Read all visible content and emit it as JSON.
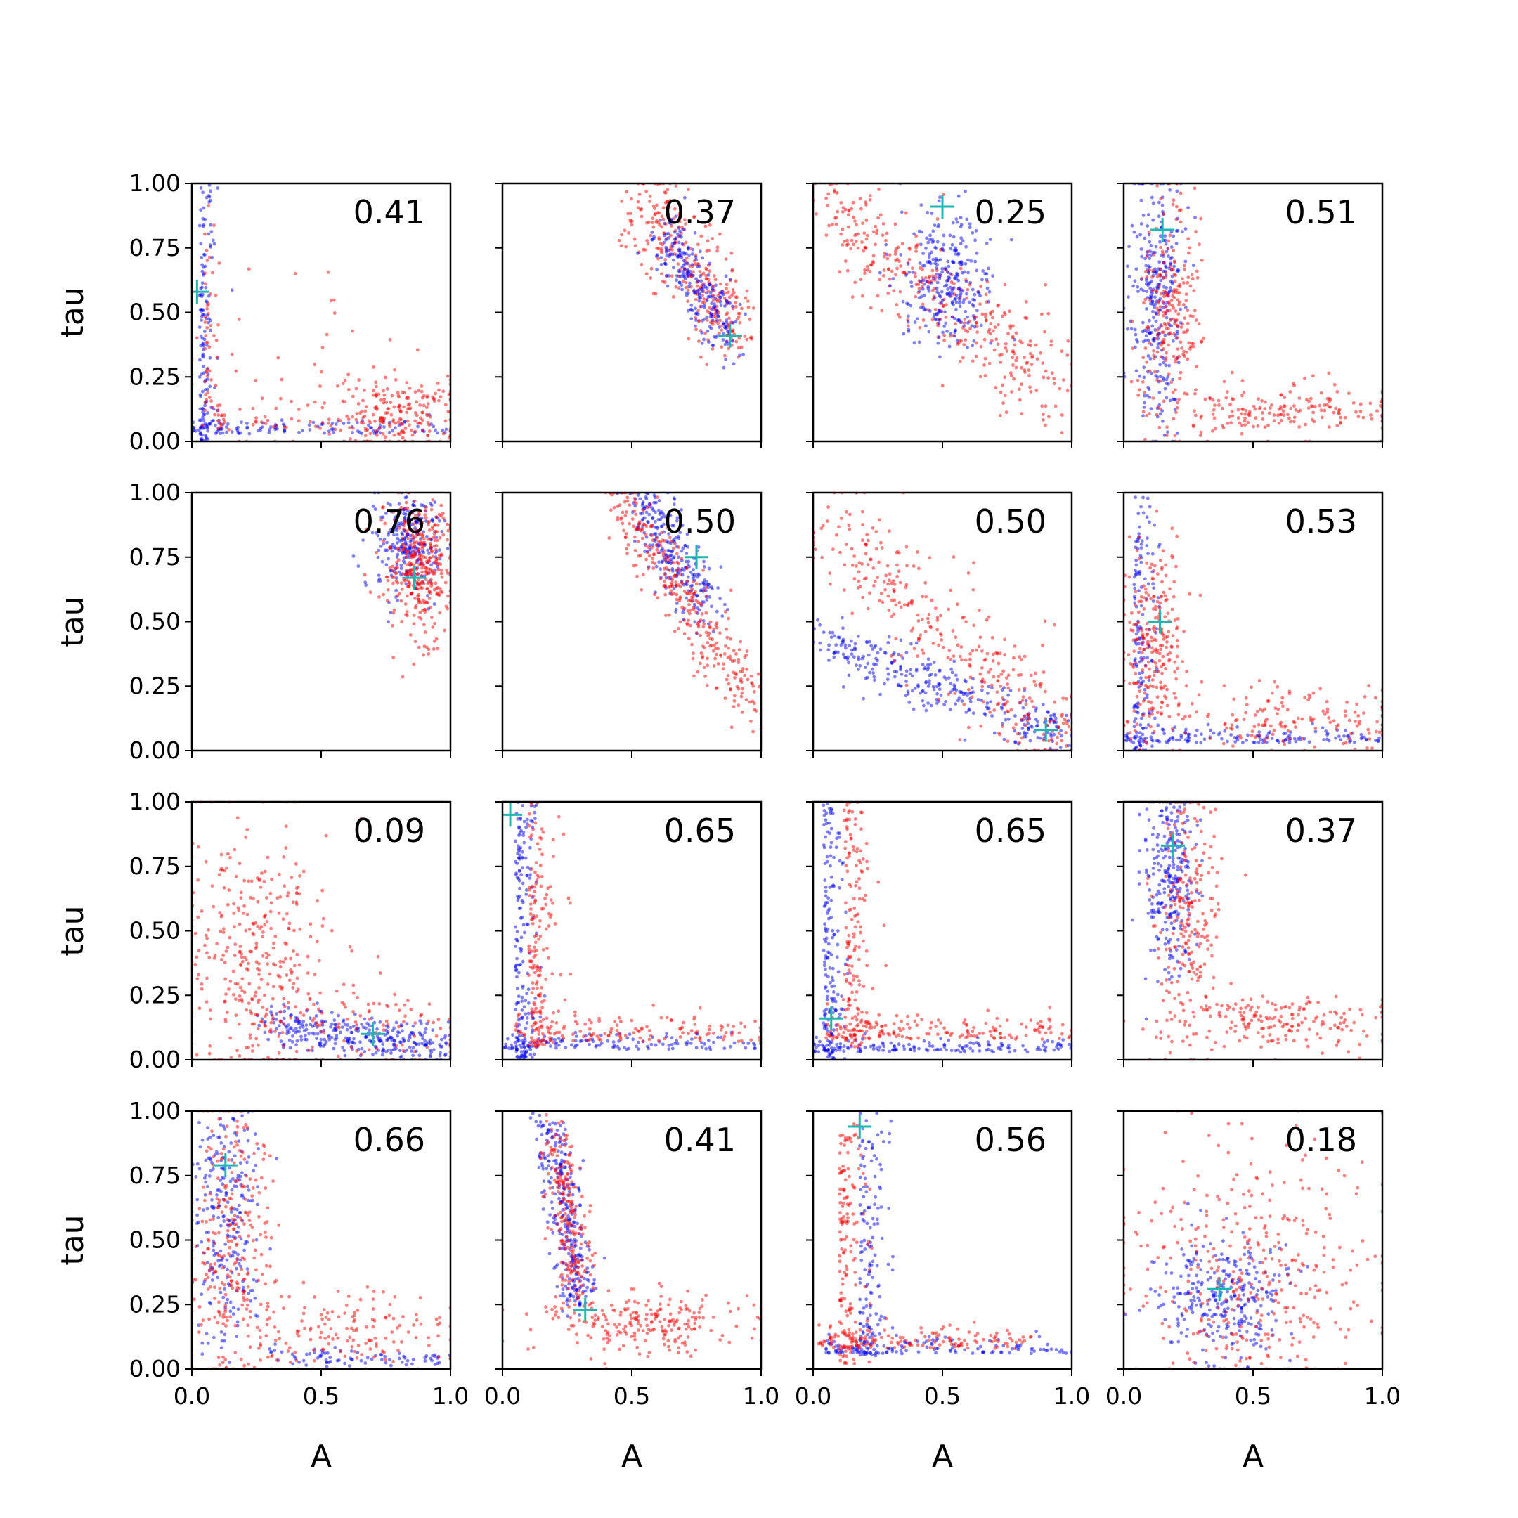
{
  "chart_data": {
    "type": "scatter",
    "layout": "4x4 grid of scatter panels, shared axes",
    "xlabel": "A",
    "ylabel": "tau",
    "xlim": [
      0,
      1
    ],
    "ylim": [
      0,
      1
    ],
    "xticks": [
      "0.0",
      "0.5",
      "1.0"
    ],
    "yticks": [
      "0.00",
      "0.25",
      "0.50",
      "0.75",
      "1.00"
    ],
    "grid": false,
    "series_colors": {
      "blue": "#0000ff",
      "red": "#ff0000",
      "marker": "#1fb5b0"
    },
    "marker_style": "cross",
    "panels": [
      {
        "stat": "0.41",
        "marker": [
          0.02,
          0.58
        ],
        "clusters": [
          {
            "color": "blue",
            "n": 260,
            "shape": "L",
            "corner": [
              0.03,
              0.03
            ],
            "h": [
              0.0,
              1.0
            ],
            "v": [
              0.0,
              1.0
            ],
            "sx": 0.03,
            "sy": 0.03
          },
          {
            "color": "red",
            "n": 90,
            "shape": "L",
            "corner": [
              0.05,
              0.05
            ],
            "h": [
              0.1,
              1.0
            ],
            "v": [
              0.1,
              1.0
            ],
            "sx": 0.03,
            "sy": 0.05
          },
          {
            "color": "red",
            "n": 200,
            "shape": "blob",
            "cx": 0.8,
            "cy": 0.1,
            "sx": 0.13,
            "sy": 0.07
          },
          {
            "color": "red",
            "n": 50,
            "shape": "blob",
            "cx": 0.35,
            "cy": 0.25,
            "sx": 0.25,
            "sy": 0.2
          }
        ]
      },
      {
        "stat": "0.37",
        "marker": [
          0.88,
          0.41
        ],
        "clusters": [
          {
            "color": "red",
            "n": 330,
            "shape": "band",
            "p0": [
              0.55,
              0.95
            ],
            "p1": [
              0.92,
              0.38
            ],
            "w": 0.08
          },
          {
            "color": "blue",
            "n": 240,
            "shape": "band",
            "p0": [
              0.62,
              0.82
            ],
            "p1": [
              0.88,
              0.4
            ],
            "w": 0.06
          }
        ]
      },
      {
        "stat": "0.25",
        "marker": [
          0.5,
          0.91
        ],
        "clusters": [
          {
            "color": "red",
            "n": 380,
            "shape": "band",
            "p0": [
              0.05,
              0.9
            ],
            "p1": [
              0.95,
              0.2
            ],
            "w": 0.09
          },
          {
            "color": "blue",
            "n": 280,
            "shape": "blob",
            "cx": 0.52,
            "cy": 0.63,
            "sx": 0.09,
            "sy": 0.13
          }
        ]
      },
      {
        "stat": "0.51",
        "marker": [
          0.15,
          0.82
        ],
        "clusters": [
          {
            "color": "blue",
            "n": 300,
            "shape": "blob",
            "cx": 0.13,
            "cy": 0.55,
            "sx": 0.05,
            "sy": 0.25
          },
          {
            "color": "red",
            "n": 230,
            "shape": "blob",
            "cx": 0.18,
            "cy": 0.5,
            "sx": 0.06,
            "sy": 0.22
          },
          {
            "color": "red",
            "n": 190,
            "shape": "blob",
            "cx": 0.6,
            "cy": 0.12,
            "sx": 0.25,
            "sy": 0.06
          }
        ]
      },
      {
        "stat": "0.76",
        "marker": [
          0.86,
          0.67
        ],
        "clusters": [
          {
            "color": "blue",
            "n": 260,
            "shape": "blob",
            "cx": 0.83,
            "cy": 0.8,
            "sx": 0.06,
            "sy": 0.1
          },
          {
            "color": "red",
            "n": 360,
            "shape": "blob",
            "cx": 0.88,
            "cy": 0.72,
            "sx": 0.06,
            "sy": 0.13
          }
        ]
      },
      {
        "stat": "0.50",
        "marker": [
          0.75,
          0.75
        ],
        "clusters": [
          {
            "color": "blue",
            "n": 260,
            "shape": "band",
            "p0": [
              0.52,
              0.98
            ],
            "p1": [
              0.8,
              0.55
            ],
            "w": 0.06
          },
          {
            "color": "red",
            "n": 340,
            "shape": "band",
            "p0": [
              0.45,
              1.0
            ],
            "p1": [
              0.98,
              0.15
            ],
            "w": 0.06
          }
        ]
      },
      {
        "stat": "0.50",
        "marker": [
          0.9,
          0.08
        ],
        "clusters": [
          {
            "color": "blue",
            "n": 320,
            "shape": "band",
            "p0": [
              0.05,
              0.42
            ],
            "p1": [
              1.0,
              0.05
            ],
            "w": 0.05
          },
          {
            "color": "red",
            "n": 340,
            "shape": "band",
            "p0": [
              0.03,
              0.9
            ],
            "p1": [
              0.98,
              0.05
            ],
            "w": 0.11
          }
        ]
      },
      {
        "stat": "0.53",
        "marker": [
          0.14,
          0.5
        ],
        "clusters": [
          {
            "color": "blue",
            "n": 300,
            "shape": "L",
            "corner": [
              0.04,
              0.03
            ],
            "h": [
              0.0,
              1.0
            ],
            "v": [
              0.0,
              1.0
            ],
            "sx": 0.04,
            "sy": 0.025
          },
          {
            "color": "red",
            "n": 240,
            "shape": "blob",
            "cx": 0.12,
            "cy": 0.4,
            "sx": 0.06,
            "sy": 0.2
          },
          {
            "color": "red",
            "n": 160,
            "shape": "blob",
            "cx": 0.65,
            "cy": 0.12,
            "sx": 0.25,
            "sy": 0.07
          }
        ]
      },
      {
        "stat": "0.09",
        "marker": [
          0.7,
          0.1
        ],
        "clusters": [
          {
            "color": "blue",
            "n": 320,
            "shape": "band",
            "p0": [
              0.3,
              0.14
            ],
            "p1": [
              1.0,
              0.05
            ],
            "w": 0.04
          },
          {
            "color": "red",
            "n": 360,
            "shape": "blob",
            "cx": 0.25,
            "cy": 0.4,
            "sx": 0.14,
            "sy": 0.25
          },
          {
            "color": "red",
            "n": 90,
            "shape": "blob",
            "cx": 0.75,
            "cy": 0.12,
            "sx": 0.18,
            "sy": 0.08
          }
        ]
      },
      {
        "stat": "0.65",
        "marker": [
          0.03,
          0.95
        ],
        "clusters": [
          {
            "color": "blue",
            "n": 320,
            "shape": "L",
            "corner": [
              0.05,
              0.04
            ],
            "h": [
              0.0,
              1.0
            ],
            "v": [
              0.0,
              1.0
            ],
            "sx": 0.04,
            "sy": 0.03
          },
          {
            "color": "red",
            "n": 300,
            "shape": "L",
            "corner": [
              0.1,
              0.07
            ],
            "h": [
              0.05,
              1.0
            ],
            "v": [
              0.05,
              1.0
            ],
            "sx": 0.05,
            "sy": 0.05
          }
        ]
      },
      {
        "stat": "0.65",
        "marker": [
          0.07,
          0.16
        ],
        "clusters": [
          {
            "color": "blue",
            "n": 320,
            "shape": "L",
            "corner": [
              0.04,
              0.03
            ],
            "h": [
              0.0,
              1.0
            ],
            "v": [
              0.0,
              1.0
            ],
            "sx": 0.035,
            "sy": 0.025
          },
          {
            "color": "red",
            "n": 320,
            "shape": "L",
            "corner": [
              0.12,
              0.08
            ],
            "h": [
              0.05,
              1.0
            ],
            "v": [
              0.05,
              1.0
            ],
            "sx": 0.05,
            "sy": 0.05
          }
        ]
      },
      {
        "stat": "0.37",
        "marker": [
          0.19,
          0.83
        ],
        "clusters": [
          {
            "color": "blue",
            "n": 280,
            "shape": "blob",
            "cx": 0.18,
            "cy": 0.7,
            "sx": 0.05,
            "sy": 0.2
          },
          {
            "color": "red",
            "n": 220,
            "shape": "blob",
            "cx": 0.24,
            "cy": 0.6,
            "sx": 0.06,
            "sy": 0.25
          },
          {
            "color": "red",
            "n": 200,
            "shape": "blob",
            "cx": 0.55,
            "cy": 0.16,
            "sx": 0.22,
            "sy": 0.06
          }
        ]
      },
      {
        "stat": "0.66",
        "marker": [
          0.13,
          0.79
        ],
        "clusters": [
          {
            "color": "blue",
            "n": 260,
            "shape": "blob",
            "cx": 0.14,
            "cy": 0.6,
            "sx": 0.06,
            "sy": 0.25
          },
          {
            "color": "blue",
            "n": 80,
            "shape": "band",
            "p0": [
              0.3,
              0.05
            ],
            "p1": [
              1.0,
              0.03
            ],
            "w": 0.02
          },
          {
            "color": "red",
            "n": 280,
            "shape": "blob",
            "cx": 0.15,
            "cy": 0.5,
            "sx": 0.08,
            "sy": 0.3
          },
          {
            "color": "red",
            "n": 160,
            "shape": "blob",
            "cx": 0.6,
            "cy": 0.15,
            "sx": 0.25,
            "sy": 0.08
          }
        ]
      },
      {
        "stat": "0.41",
        "marker": [
          0.32,
          0.23
        ],
        "clusters": [
          {
            "color": "blue",
            "n": 300,
            "shape": "band",
            "p0": [
              0.18,
              0.95
            ],
            "p1": [
              0.3,
              0.25
            ],
            "w": 0.05
          },
          {
            "color": "red",
            "n": 220,
            "shape": "band",
            "p0": [
              0.2,
              0.9
            ],
            "p1": [
              0.3,
              0.3
            ],
            "w": 0.05
          },
          {
            "color": "red",
            "n": 230,
            "shape": "blob",
            "cx": 0.55,
            "cy": 0.18,
            "sx": 0.2,
            "sy": 0.06
          }
        ]
      },
      {
        "stat": "0.56",
        "marker": [
          0.18,
          0.94
        ],
        "clusters": [
          {
            "color": "blue",
            "n": 280,
            "shape": "L",
            "corner": [
              0.18,
              0.06
            ],
            "h": [
              0.05,
              1.0
            ],
            "v": [
              0.05,
              1.0
            ],
            "sx": 0.05,
            "sy": 0.03
          },
          {
            "color": "red",
            "n": 300,
            "shape": "L",
            "corner": [
              0.1,
              0.08
            ],
            "h": [
              0.02,
              0.85
            ],
            "v": [
              0.02,
              0.95
            ],
            "sx": 0.05,
            "sy": 0.04
          }
        ]
      },
      {
        "stat": "0.18",
        "marker": [
          0.37,
          0.31
        ],
        "clusters": [
          {
            "color": "blue",
            "n": 300,
            "shape": "blob",
            "cx": 0.38,
            "cy": 0.28,
            "sx": 0.12,
            "sy": 0.12
          },
          {
            "color": "red",
            "n": 360,
            "shape": "blob",
            "cx": 0.5,
            "cy": 0.35,
            "sx": 0.25,
            "sy": 0.25
          }
        ]
      }
    ]
  }
}
